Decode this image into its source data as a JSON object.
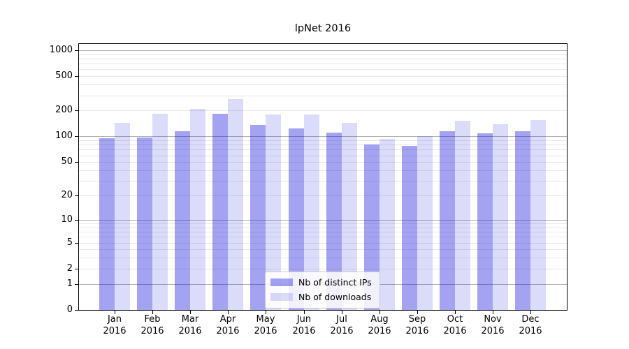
{
  "chart_data": {
    "type": "bar",
    "title": "lpNet 2016",
    "categories": [
      "Jan",
      "Feb",
      "Mar",
      "Apr",
      "May",
      "Jun",
      "Jul",
      "Aug",
      "Sep",
      "Oct",
      "Nov",
      "Dec"
    ],
    "x_year_label": "2016",
    "series": [
      {
        "name": "Nb of distinct IPs",
        "color": "rgba(0,0,220,0.36)",
        "values": [
          95,
          98,
          116,
          185,
          136,
          123,
          110,
          80,
          77,
          116,
          108,
          114
        ]
      },
      {
        "name": "Nb of downloads",
        "color": "rgba(0,0,220,0.14)",
        "values": [
          145,
          183,
          210,
          270,
          180,
          181,
          144,
          94,
          100,
          151,
          139,
          154
        ]
      }
    ],
    "yscale": "log10(value+1)",
    "y_ticks": [
      1000,
      500,
      200,
      100,
      50,
      20,
      10,
      5,
      2,
      1,
      0
    ],
    "ylim": [
      0,
      1180
    ],
    "grid": true,
    "legend_position": "lower center",
    "colors": {
      "grid_major": "#b0b0b0",
      "grid_minor": "#e8e8e8",
      "axis": "#000000",
      "text": "#000000"
    }
  }
}
